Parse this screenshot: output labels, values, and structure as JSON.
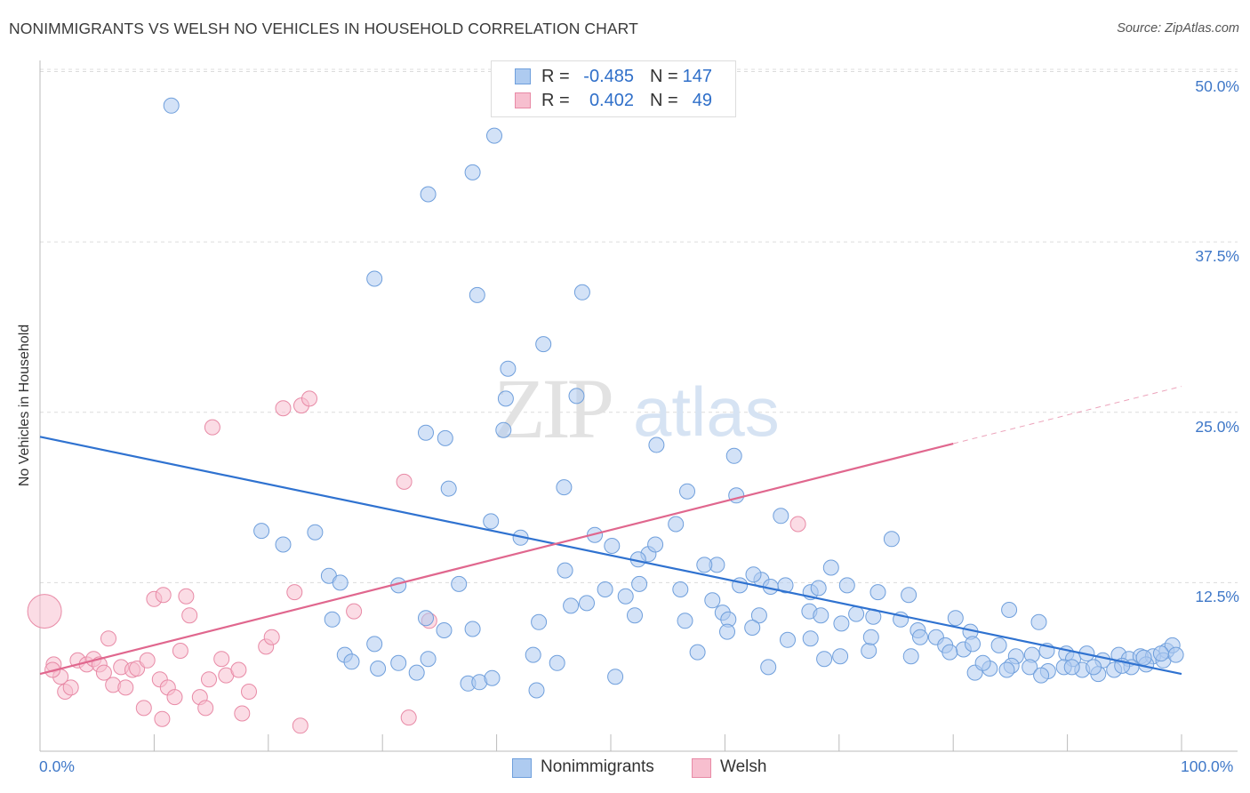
{
  "title": "NONIMMIGRANTS VS WELSH NO VEHICLES IN HOUSEHOLD CORRELATION CHART",
  "source": "Source: ZipAtlas.com",
  "watermark": {
    "zip": "ZIP",
    "atlas": "atlas"
  },
  "stats": [
    {
      "r_label": "R =",
      "r_value": "-0.485",
      "n_label": "N =",
      "n_value": "147",
      "color": "#aecbf0",
      "border": "#6f9fdc"
    },
    {
      "r_label": "R =",
      "r_value": "0.402",
      "n_label": "N =",
      "n_value": "49",
      "color": "#f7bfcf",
      "border": "#e88aa6"
    }
  ],
  "legend": [
    {
      "label": "Nonimmigrants",
      "color": "#aecbf0",
      "border": "#6f9fdc"
    },
    {
      "label": "Welsh",
      "color": "#f7bfcf",
      "border": "#e88aa6"
    }
  ],
  "chart_data": {
    "type": "scatter",
    "title": "NONIMMIGRANTS VS WELSH NO VEHICLES IN HOUSEHOLD CORRELATION CHART",
    "xlabel": "",
    "ylabel": "No Vehicles in Household",
    "xlim": [
      0,
      100
    ],
    "ylim": [
      0,
      50
    ],
    "x_tick_labels": [
      "0.0%",
      "100.0%"
    ],
    "y_tick_labels": [
      "12.5%",
      "25.0%",
      "37.5%",
      "50.0%"
    ],
    "y_ticks": [
      12.5,
      25.0,
      37.5,
      50.0
    ],
    "grid": "dashed horizontal",
    "legend_position": "bottom-center",
    "series": [
      {
        "name": "Nonimmigrants",
        "color": "#6f9fdc",
        "fill": "#aecbf0",
        "trend": {
          "x": [
            0,
            100
          ],
          "y": [
            23.2,
            5.8
          ],
          "color": "#2f72d0"
        },
        "points": [
          [
            11.5,
            47.5
          ],
          [
            39.8,
            45.3
          ],
          [
            37.9,
            42.6
          ],
          [
            34,
            41
          ],
          [
            29.3,
            34.8
          ],
          [
            38.3,
            33.6
          ],
          [
            47.5,
            33.8
          ],
          [
            44.1,
            30
          ],
          [
            41,
            28.2
          ],
          [
            40.8,
            26
          ],
          [
            47,
            26.2
          ],
          [
            33.8,
            23.5
          ],
          [
            35.5,
            23.1
          ],
          [
            40.6,
            23.7
          ],
          [
            54,
            22.6
          ],
          [
            60.8,
            21.8
          ],
          [
            35.8,
            19.4
          ],
          [
            56.7,
            19.2
          ],
          [
            61,
            18.9
          ],
          [
            45.9,
            19.5
          ],
          [
            39.5,
            17
          ],
          [
            19.4,
            16.3
          ],
          [
            21.3,
            15.3
          ],
          [
            24.1,
            16.2
          ],
          [
            42.1,
            15.8
          ],
          [
            48.6,
            16
          ],
          [
            50.1,
            15.2
          ],
          [
            55.7,
            16.8
          ],
          [
            64.9,
            17.4
          ],
          [
            53.3,
            14.6
          ],
          [
            59.3,
            13.8
          ],
          [
            46,
            13.4
          ],
          [
            52.4,
            14.2
          ],
          [
            53.9,
            15.3
          ],
          [
            58.2,
            13.8
          ],
          [
            63.2,
            12.7
          ],
          [
            62.5,
            13.1
          ],
          [
            69.3,
            13.6
          ],
          [
            74.6,
            15.7
          ],
          [
            25.3,
            13
          ],
          [
            26.3,
            12.5
          ],
          [
            31.4,
            12.3
          ],
          [
            36.7,
            12.4
          ],
          [
            46.5,
            10.8
          ],
          [
            47.9,
            11
          ],
          [
            49.5,
            12
          ],
          [
            51.3,
            11.5
          ],
          [
            52.5,
            12.4
          ],
          [
            56.1,
            12
          ],
          [
            58.9,
            11.2
          ],
          [
            61.3,
            12.3
          ],
          [
            64,
            12.2
          ],
          [
            65.3,
            12.3
          ],
          [
            67.5,
            11.8
          ],
          [
            68.2,
            12.1
          ],
          [
            70.7,
            12.3
          ],
          [
            73.4,
            11.8
          ],
          [
            76.1,
            11.6
          ],
          [
            25.6,
            9.8
          ],
          [
            33.8,
            9.9
          ],
          [
            43.7,
            9.6
          ],
          [
            56.5,
            9.7
          ],
          [
            59.8,
            10.3
          ],
          [
            63,
            10.1
          ],
          [
            67.4,
            10.4
          ],
          [
            68.4,
            10.1
          ],
          [
            71.5,
            10.2
          ],
          [
            75.4,
            9.8
          ],
          [
            84.9,
            10.5
          ],
          [
            87.5,
            9.6
          ],
          [
            35.4,
            9
          ],
          [
            37.9,
            9.1
          ],
          [
            52.1,
            10.1
          ],
          [
            60.3,
            9.8
          ],
          [
            62.4,
            9.2
          ],
          [
            70.2,
            9.5
          ],
          [
            73,
            10
          ],
          [
            76.9,
            9
          ],
          [
            78.5,
            8.5
          ],
          [
            80.2,
            9.9
          ],
          [
            81.5,
            8.9
          ],
          [
            26.7,
            7.2
          ],
          [
            29.3,
            8
          ],
          [
            31.4,
            6.6
          ],
          [
            34,
            6.9
          ],
          [
            43.2,
            7.2
          ],
          [
            45.3,
            6.6
          ],
          [
            57.6,
            7.4
          ],
          [
            60.2,
            8.9
          ],
          [
            65.5,
            8.3
          ],
          [
            67.5,
            8.4
          ],
          [
            70.1,
            7.1
          ],
          [
            72.6,
            7.5
          ],
          [
            77.1,
            8.5
          ],
          [
            79.3,
            7.9
          ],
          [
            80.9,
            7.6
          ],
          [
            81.7,
            8
          ],
          [
            84,
            7.9
          ],
          [
            85.5,
            7.1
          ],
          [
            86.9,
            7.2
          ],
          [
            88.2,
            7.5
          ],
          [
            89.9,
            7.3
          ],
          [
            90.5,
            6.9
          ],
          [
            91.7,
            7.3
          ],
          [
            93.1,
            6.8
          ],
          [
            94.5,
            7.2
          ],
          [
            95.4,
            6.9
          ],
          [
            96.4,
            7.1
          ],
          [
            97.5,
            7.1
          ],
          [
            98.7,
            7.5
          ],
          [
            99.2,
            7.9
          ],
          [
            27.3,
            6.7
          ],
          [
            29.6,
            6.2
          ],
          [
            33,
            5.9
          ],
          [
            37.5,
            5.1
          ],
          [
            38.5,
            5.2
          ],
          [
            39.6,
            5.5
          ],
          [
            43.5,
            4.6
          ],
          [
            50.4,
            5.6
          ],
          [
            81.9,
            5.9
          ],
          [
            83.2,
            6.2
          ],
          [
            85.1,
            6.4
          ],
          [
            86.7,
            6.3
          ],
          [
            88.3,
            6
          ],
          [
            89.7,
            6.3
          ],
          [
            91.3,
            6.1
          ],
          [
            92.7,
            5.8
          ],
          [
            94.1,
            6.1
          ],
          [
            95.6,
            6.3
          ],
          [
            96.9,
            6.5
          ],
          [
            98.4,
            6.8
          ],
          [
            99.5,
            7.2
          ],
          [
            84.7,
            6.1
          ],
          [
            87.7,
            5.7
          ],
          [
            90.4,
            6.3
          ],
          [
            92.3,
            6.3
          ],
          [
            94.8,
            6.4
          ],
          [
            96.7,
            7
          ],
          [
            98.2,
            7.3
          ],
          [
            79.7,
            7.4
          ],
          [
            82.6,
            6.6
          ],
          [
            72.8,
            8.5
          ],
          [
            76.3,
            7.1
          ],
          [
            68.7,
            6.9
          ],
          [
            63.8,
            6.3
          ]
        ]
      },
      {
        "name": "Welsh",
        "color": "#e88aa6",
        "fill": "#f7bfcf",
        "trend": {
          "x": [
            0,
            80
          ],
          "y": [
            5.8,
            22.7
          ],
          "dashed_to": [
            100,
            26.9
          ],
          "color": "#e0678e"
        },
        "points": [
          [
            0.4,
            10.4
          ],
          [
            1.2,
            6.5
          ],
          [
            1.8,
            5.6
          ],
          [
            2.2,
            4.5
          ],
          [
            2.7,
            4.8
          ],
          [
            3.3,
            6.8
          ],
          [
            4.1,
            6.5
          ],
          [
            4.7,
            6.9
          ],
          [
            5.2,
            6.5
          ],
          [
            5.6,
            5.9
          ],
          [
            6,
            8.4
          ],
          [
            6.4,
            5
          ],
          [
            7.1,
            6.3
          ],
          [
            7.5,
            4.8
          ],
          [
            8.1,
            6.1
          ],
          [
            8.5,
            6.2
          ],
          [
            9.1,
            3.3
          ],
          [
            9.4,
            6.8
          ],
          [
            10,
            11.3
          ],
          [
            10.5,
            5.4
          ],
          [
            10.7,
            2.5
          ],
          [
            10.8,
            11.6
          ],
          [
            11.2,
            4.8
          ],
          [
            11.8,
            4.1
          ],
          [
            12.3,
            7.5
          ],
          [
            12.8,
            11.5
          ],
          [
            13.1,
            10.1
          ],
          [
            14,
            4.1
          ],
          [
            14.5,
            3.3
          ],
          [
            14.8,
            5.4
          ],
          [
            15.1,
            23.9
          ],
          [
            15.9,
            6.9
          ],
          [
            16.3,
            5.7
          ],
          [
            17.4,
            6.1
          ],
          [
            17.7,
            2.9
          ],
          [
            18.3,
            4.5
          ],
          [
            19.8,
            7.8
          ],
          [
            20.3,
            8.5
          ],
          [
            21.3,
            25.3
          ],
          [
            22.3,
            11.8
          ],
          [
            22.8,
            2
          ],
          [
            22.9,
            25.5
          ],
          [
            23.6,
            26
          ],
          [
            27.5,
            10.4
          ],
          [
            31.9,
            19.9
          ],
          [
            32.3,
            2.6
          ],
          [
            34.1,
            9.7
          ],
          [
            66.4,
            16.8
          ],
          [
            1.1,
            6.1
          ]
        ]
      }
    ]
  }
}
